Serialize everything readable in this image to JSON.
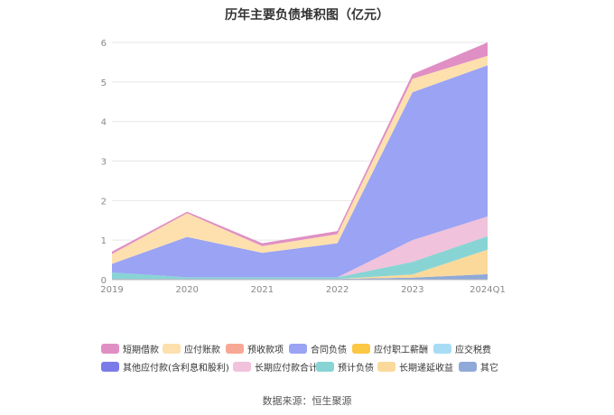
{
  "chart_data": {
    "type": "area",
    "stacked": true,
    "title": "历年主要负债堆积图（亿元）",
    "xlabel": "",
    "ylabel": "",
    "categories": [
      "2019",
      "2020",
      "2021",
      "2022",
      "2023",
      "2024Q1"
    ],
    "yticks": [
      0,
      1,
      2,
      3,
      4,
      5,
      6
    ],
    "ylim": [
      0,
      6
    ],
    "grid": true,
    "legend_position": "bottom",
    "series": [
      {
        "name": "其它",
        "color": "#8fa9d8",
        "values": [
          0.02,
          0.02,
          0.02,
          0.02,
          0.05,
          0.14
        ]
      },
      {
        "name": "长期递延收益",
        "color": "#fbd99b",
        "values": [
          0.0,
          0.0,
          0.0,
          0.0,
          0.08,
          0.62
        ]
      },
      {
        "name": "预计负债",
        "color": "#88d4d4",
        "values": [
          0.16,
          0.04,
          0.04,
          0.04,
          0.32,
          0.34
        ]
      },
      {
        "name": "长期应付款合计",
        "color": "#f0c2db",
        "values": [
          0.0,
          0.0,
          0.0,
          0.0,
          0.55,
          0.5
        ]
      },
      {
        "name": "其他应付款(含利息和股利)",
        "color": "#7a7be8",
        "values": [
          0.0,
          0.0,
          0.0,
          0.0,
          0.0,
          0.0
        ]
      },
      {
        "name": "应交税费",
        "color": "#a8dcf5",
        "values": [
          0.0,
          0.0,
          0.0,
          0.0,
          0.0,
          0.0
        ]
      },
      {
        "name": "应付职工薪酬",
        "color": "#fbc744",
        "values": [
          0.0,
          0.0,
          0.0,
          0.0,
          0.0,
          0.0
        ]
      },
      {
        "name": "合同负债",
        "color": "#9aa3f4",
        "values": [
          0.22,
          1.02,
          0.62,
          0.86,
          3.74,
          3.82
        ]
      },
      {
        "name": "预收款项",
        "color": "#f7a894",
        "values": [
          0.0,
          0.0,
          0.0,
          0.0,
          0.0,
          0.0
        ]
      },
      {
        "name": "应付账款",
        "color": "#fde0ae",
        "values": [
          0.25,
          0.6,
          0.17,
          0.23,
          0.34,
          0.24
        ]
      },
      {
        "name": "短期借款",
        "color": "#e08fc4",
        "values": [
          0.06,
          0.04,
          0.07,
          0.08,
          0.12,
          0.34
        ]
      }
    ]
  },
  "legend_rows": [
    [
      {
        "name": "短期借款",
        "color": "#e08fc4",
        "width": 68
      },
      {
        "name": "应付账款",
        "color": "#fde0ae",
        "width": 70
      },
      {
        "name": "预收款项",
        "color": "#f7a894",
        "width": 70
      },
      {
        "name": "合同负债",
        "color": "#9aa3f4",
        "width": 70
      },
      {
        "name": "应付职工薪酬",
        "color": "#fbc744",
        "width": 90
      },
      {
        "name": "应交税费",
        "color": "#a8dcf5",
        "width": 70
      }
    ],
    [
      {
        "name": "其他应付款(含利息和股利)",
        "color": "#7a7be8",
        "width": 146
      },
      {
        "name": "长期应付款合计",
        "color": "#f0c2db",
        "width": 92
      },
      {
        "name": "预计负债",
        "color": "#88d4d4",
        "width": 68
      },
      {
        "name": "长期递延收益",
        "color": "#fbd99b",
        "width": 90
      },
      {
        "name": "其它",
        "color": "#8fa9d8",
        "width": 50
      }
    ]
  ],
  "source": "数据来源：恒生聚源"
}
